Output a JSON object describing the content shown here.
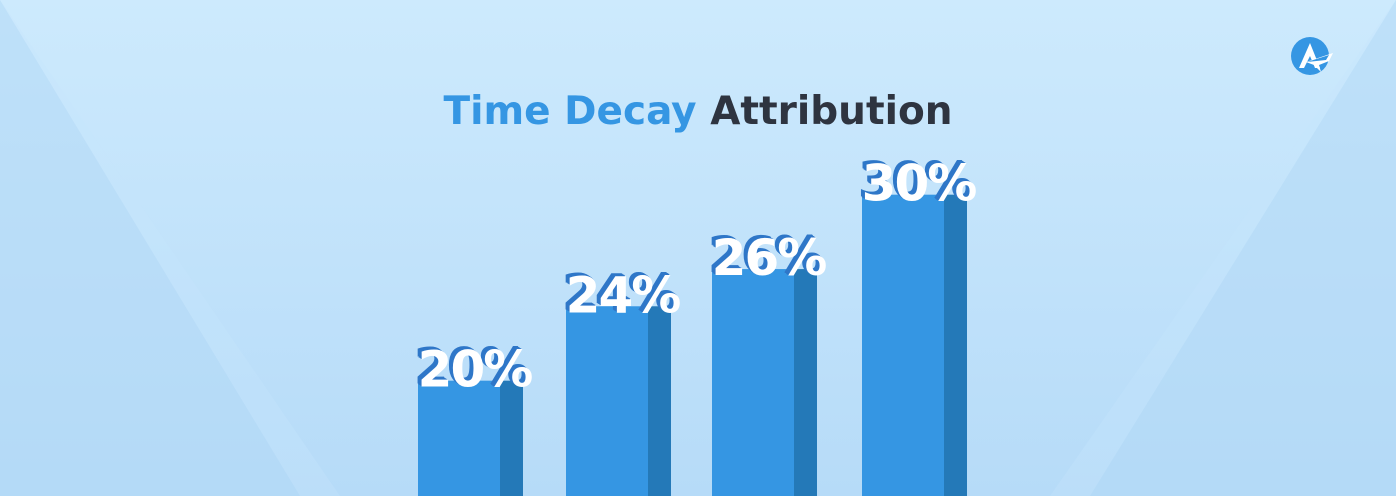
{
  "title": {
    "highlight": "Time Decay",
    "rest": "Attribution"
  },
  "logo": {
    "icon": "brand-logo-icon"
  },
  "colors": {
    "background": "#cfe9fc",
    "accent": "#3596e3",
    "bar_front": "#3596e3",
    "bar_side": "#2479b8",
    "label_fill": "#ffffff",
    "label_shadow": "#2f77c8",
    "title_dark": "#2e3440"
  },
  "chart_data": {
    "type": "bar",
    "title": "Time Decay Attribution",
    "categories": [
      "",
      "",
      "",
      ""
    ],
    "values": [
      20,
      24,
      26,
      30
    ],
    "labels": [
      "20%",
      "24%",
      "26%",
      "30%"
    ],
    "ylim": [
      0,
      30
    ],
    "grid": false,
    "legend": "none"
  }
}
